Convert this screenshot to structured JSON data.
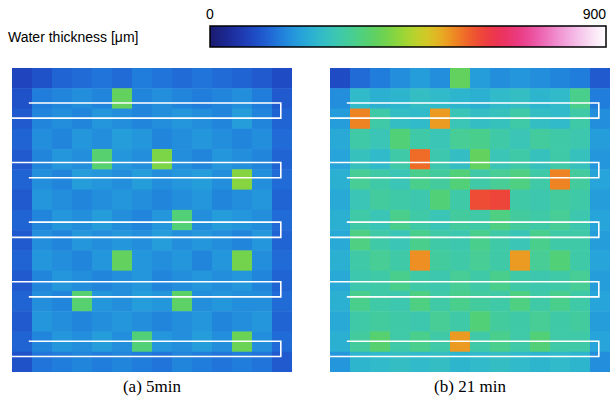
{
  "chart_data": {
    "type": "heatmap",
    "tick_labels": false,
    "colorbar": {
      "title": "Water thickness [μm]",
      "range": [
        0,
        900
      ],
      "ticks": [
        0,
        900
      ]
    },
    "panels": [
      {
        "caption": "(a) 5min",
        "cells": [
          [
            90,
            110,
            130,
            140,
            150,
            140,
            160,
            150,
            140,
            150,
            140,
            130,
            120,
            100
          ],
          [
            110,
            160,
            170,
            180,
            170,
            380,
            170,
            180,
            170,
            160,
            170,
            180,
            160,
            120
          ],
          [
            120,
            170,
            180,
            170,
            190,
            180,
            170,
            180,
            190,
            180,
            170,
            200,
            170,
            130
          ],
          [
            130,
            180,
            170,
            190,
            180,
            200,
            190,
            170,
            180,
            190,
            180,
            170,
            180,
            140
          ],
          [
            120,
            170,
            190,
            180,
            360,
            190,
            180,
            410,
            180,
            170,
            190,
            180,
            170,
            130
          ],
          [
            130,
            180,
            170,
            200,
            190,
            180,
            200,
            180,
            190,
            200,
            180,
            420,
            180,
            140
          ],
          [
            120,
            190,
            180,
            170,
            180,
            190,
            180,
            170,
            180,
            190,
            170,
            180,
            190,
            130
          ],
          [
            130,
            170,
            190,
            180,
            200,
            180,
            170,
            190,
            350,
            180,
            200,
            190,
            180,
            140
          ],
          [
            120,
            180,
            170,
            190,
            180,
            190,
            180,
            200,
            180,
            190,
            180,
            170,
            190,
            130
          ],
          [
            130,
            190,
            180,
            170,
            190,
            380,
            190,
            180,
            190,
            170,
            190,
            400,
            180,
            140
          ],
          [
            120,
            170,
            190,
            180,
            170,
            180,
            190,
            170,
            180,
            190,
            180,
            190,
            170,
            130
          ],
          [
            130,
            180,
            170,
            360,
            190,
            180,
            200,
            190,
            370,
            180,
            190,
            180,
            180,
            140
          ],
          [
            120,
            190,
            180,
            170,
            180,
            190,
            180,
            170,
            180,
            190,
            170,
            180,
            190,
            130
          ],
          [
            130,
            170,
            190,
            180,
            200,
            180,
            350,
            190,
            180,
            200,
            180,
            390,
            180,
            140
          ],
          [
            110,
            150,
            160,
            170,
            160,
            170,
            160,
            150,
            170,
            160,
            150,
            160,
            150,
            120
          ]
        ]
      },
      {
        "caption": "(b) 21 min",
        "cells": [
          [
            100,
            140,
            160,
            180,
            200,
            180,
            380,
            200,
            180,
            190,
            180,
            170,
            160,
            120
          ],
          [
            180,
            250,
            230,
            240,
            260,
            250,
            240,
            230,
            250,
            260,
            240,
            250,
            330,
            160
          ],
          [
            200,
            560,
            300,
            260,
            250,
            540,
            280,
            260,
            270,
            300,
            260,
            250,
            300,
            180
          ],
          [
            220,
            300,
            280,
            350,
            300,
            280,
            320,
            330,
            300,
            280,
            310,
            300,
            290,
            200
          ],
          [
            210,
            270,
            250,
            300,
            580,
            290,
            260,
            380,
            280,
            300,
            270,
            300,
            270,
            190
          ],
          [
            230,
            320,
            300,
            280,
            330,
            310,
            350,
            300,
            320,
            340,
            300,
            560,
            310,
            210
          ],
          [
            220,
            280,
            310,
            300,
            290,
            350,
            300,
            610,
            620,
            300,
            290,
            310,
            300,
            200
          ],
          [
            230,
            300,
            280,
            330,
            300,
            280,
            310,
            300,
            340,
            310,
            300,
            320,
            290,
            210
          ],
          [
            220,
            340,
            300,
            280,
            330,
            300,
            290,
            330,
            300,
            280,
            330,
            300,
            300,
            200
          ],
          [
            230,
            300,
            320,
            300,
            550,
            310,
            300,
            320,
            300,
            540,
            320,
            350,
            300,
            210
          ],
          [
            220,
            290,
            300,
            330,
            300,
            290,
            320,
            300,
            330,
            300,
            290,
            300,
            320,
            200
          ],
          [
            230,
            330,
            300,
            290,
            340,
            300,
            330,
            310,
            300,
            340,
            300,
            330,
            300,
            210
          ],
          [
            220,
            300,
            310,
            300,
            290,
            320,
            300,
            350,
            310,
            300,
            320,
            300,
            310,
            200
          ],
          [
            230,
            310,
            360,
            300,
            330,
            300,
            540,
            300,
            330,
            300,
            350,
            300,
            300,
            210
          ],
          [
            190,
            240,
            250,
            260,
            250,
            260,
            240,
            250,
            260,
            250,
            240,
            250,
            240,
            180
          ]
        ]
      }
    ]
  }
}
